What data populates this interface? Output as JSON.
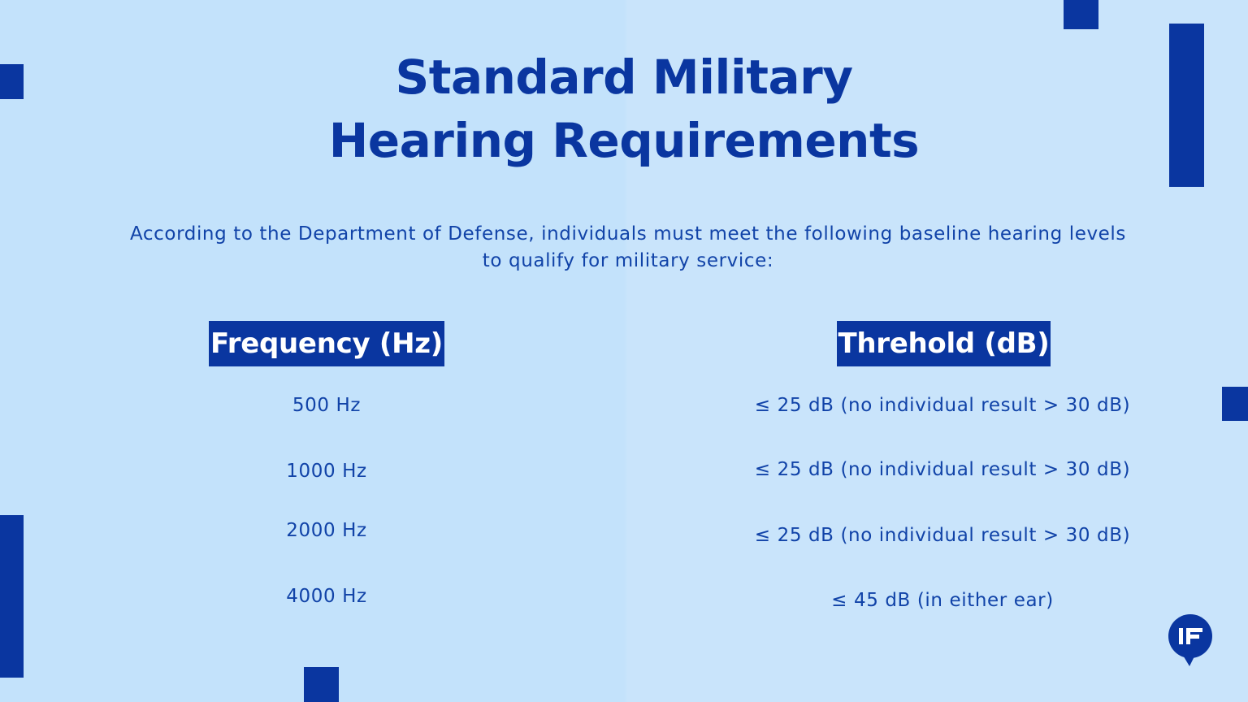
{
  "title": {
    "line1": "Standard Military",
    "line2": "Hearing Requirements"
  },
  "intro": "According to the Department of Defense, individuals must meet the following baseline hearing levels to qualify for military service:",
  "table": {
    "headers": {
      "frequency": "Frequency (Hz)",
      "threshold": "Threhold (dB)"
    },
    "rows": [
      {
        "frequency": "500 Hz",
        "threshold": "≤ 25 dB (no individual result > 30 dB)"
      },
      {
        "frequency": "1000 Hz",
        "threshold": "≤ 25 dB (no individual result > 30 dB)"
      },
      {
        "frequency": "2000 Hz",
        "threshold": "≤ 25 dB (no individual result > 30 dB)"
      },
      {
        "frequency": "4000 Hz",
        "threshold": "≤ 45 dB (in either ear)"
      }
    ]
  },
  "colors": {
    "background": "#c3e2fb",
    "accent": "#0a36a0",
    "text": "#1143a8"
  },
  "icons": {
    "logo": "speech-bubble-logo-icon"
  }
}
